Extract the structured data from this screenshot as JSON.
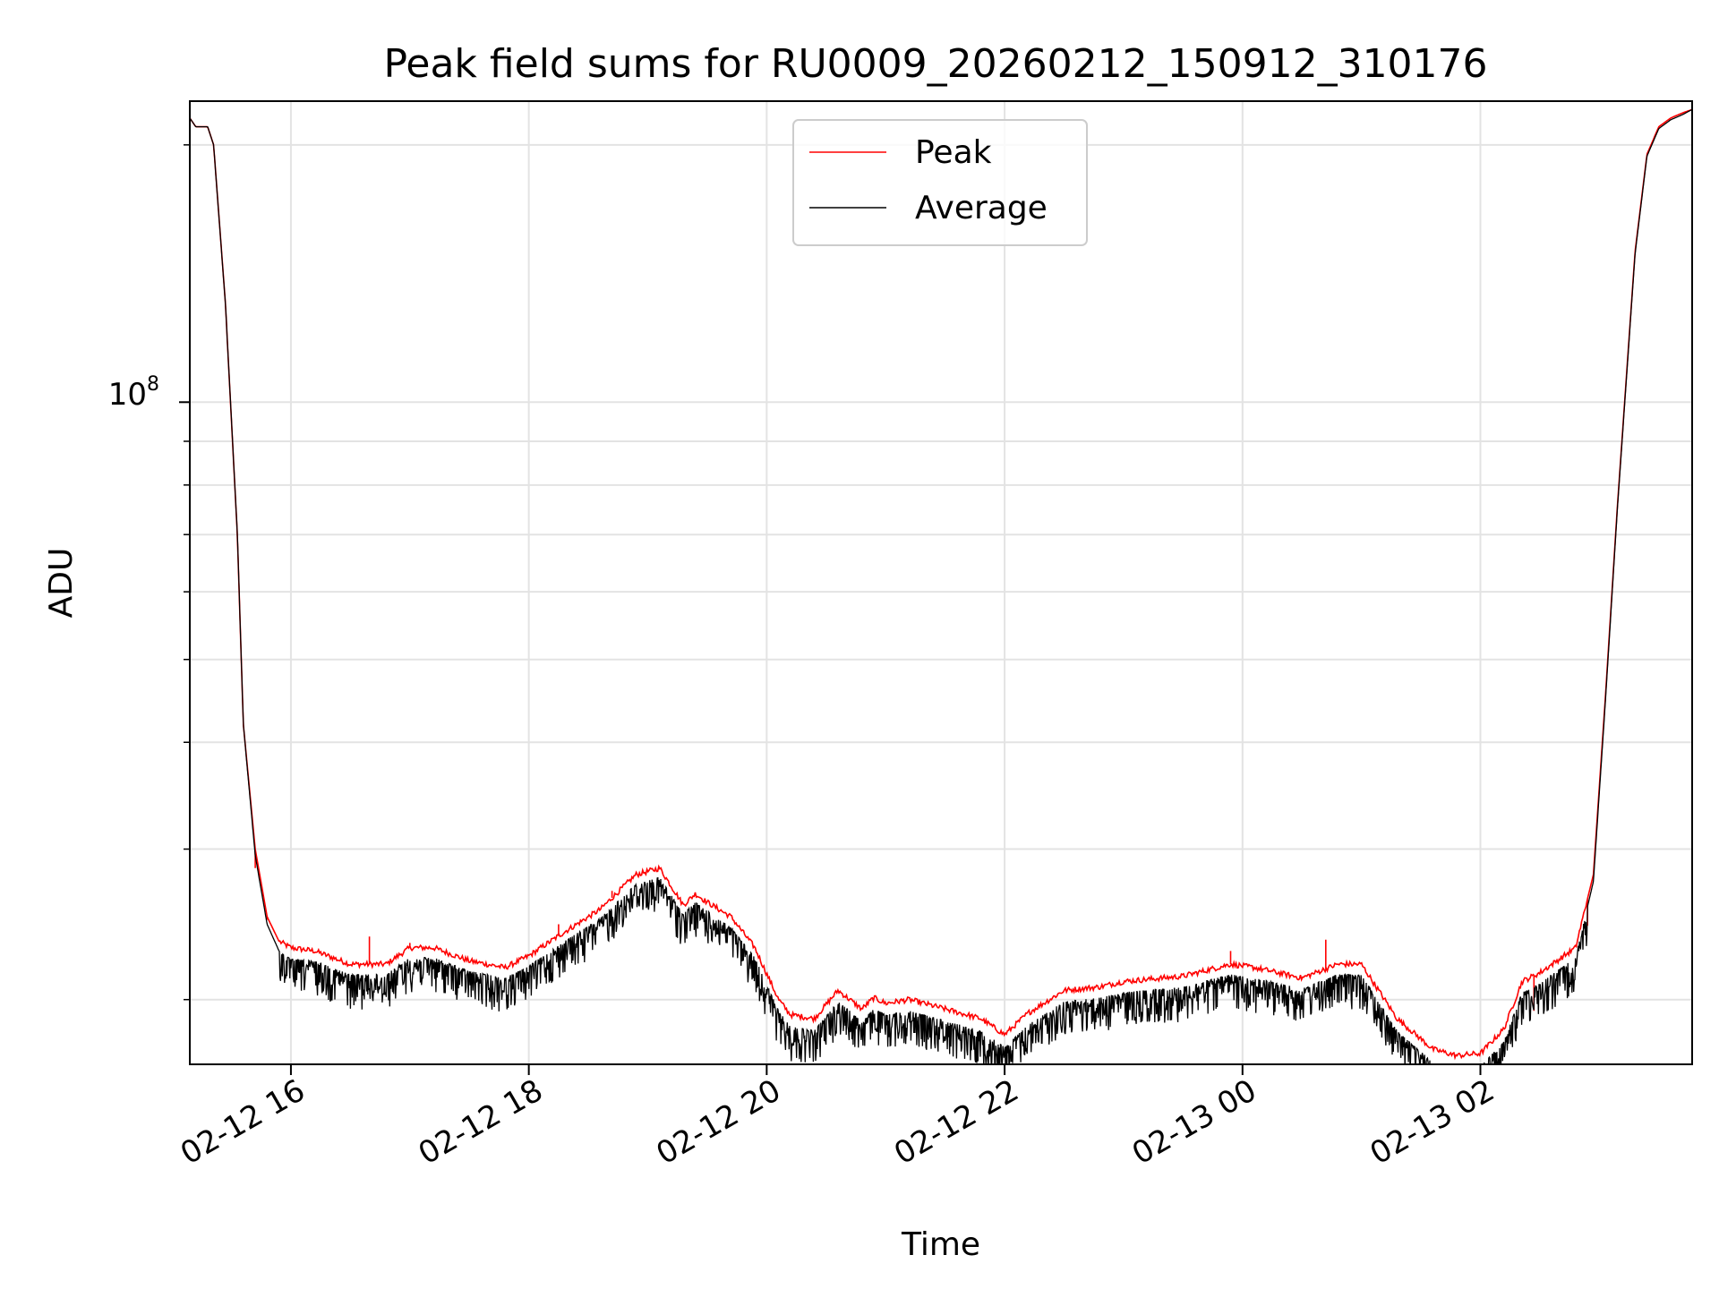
{
  "chart_data": {
    "type": "line",
    "title": "Peak field sums for RU0009_20260212_150912_310176",
    "xlabel": "Time",
    "ylabel": "ADU",
    "yscale": "log",
    "grid": true,
    "legend_position": "top-center",
    "x_unit": "hours since 02-12 00:00",
    "xlim": [
      15.15,
      27.78
    ],
    "ylim": [
      16800000,
      225000000
    ],
    "x_ticks": [
      {
        "value": 16,
        "label": "02-12 16"
      },
      {
        "value": 18,
        "label": "02-12 18"
      },
      {
        "value": 20,
        "label": "02-12 20"
      },
      {
        "value": 22,
        "label": "02-12 22"
      },
      {
        "value": 24,
        "label": "02-13 00"
      },
      {
        "value": 26,
        "label": "02-13 02"
      }
    ],
    "y_major_tick": {
      "value": 100000000,
      "base": "10",
      "exponent": "8"
    },
    "y_minor_ticks": [
      20000000,
      30000000,
      40000000,
      50000000,
      60000000,
      70000000,
      80000000,
      90000000,
      200000000
    ],
    "series": [
      {
        "name": "Peak",
        "color": "#ff0000",
        "x": [
          15.15,
          15.2,
          15.3,
          15.35,
          15.45,
          15.55,
          15.6,
          15.7,
          15.8,
          15.9,
          16.0,
          16.2,
          16.5,
          16.8,
          17.0,
          17.2,
          17.5,
          17.8,
          18.0,
          18.3,
          18.6,
          18.9,
          19.1,
          19.3,
          19.4,
          19.5,
          19.7,
          19.9,
          20.1,
          20.2,
          20.4,
          20.6,
          20.8,
          20.9,
          21.0,
          21.2,
          21.5,
          21.8,
          22.0,
          22.2,
          22.5,
          22.8,
          23.0,
          23.5,
          23.9,
          24.1,
          24.5,
          24.8,
          25.0,
          25.3,
          25.6,
          25.8,
          26.0,
          26.2,
          26.35,
          26.5,
          26.8,
          26.95,
          27.05,
          27.15,
          27.3,
          27.4,
          27.5,
          27.6,
          27.7,
          27.78
        ],
        "y": [
          215000000,
          210000000,
          210000000,
          200000000,
          130000000,
          70000000,
          42000000,
          30000000,
          25000000,
          23400000,
          23000000,
          22800000,
          22000000,
          22000000,
          23000000,
          23000000,
          22200000,
          21800000,
          22500000,
          24000000,
          25500000,
          28000000,
          28500000,
          25800000,
          26600000,
          26000000,
          25000000,
          23000000,
          20000000,
          19200000,
          19000000,
          20500000,
          19500000,
          20100000,
          19800000,
          20000000,
          19500000,
          19000000,
          18200000,
          19300000,
          20500000,
          20700000,
          21000000,
          21300000,
          22000000,
          21800000,
          21200000,
          22000000,
          22000000,
          19000000,
          17500000,
          17200000,
          17300000,
          18500000,
          21000000,
          21500000,
          23000000,
          28000000,
          45000000,
          75000000,
          150000000,
          195000000,
          210000000,
          215000000,
          218000000,
          220000000
        ],
        "spikes": [
          {
            "x": 15.7,
            "y": 28500000
          },
          {
            "x": 15.8,
            "y": 24800000
          },
          {
            "x": 16.66,
            "y": 23700000
          },
          {
            "x": 17.0,
            "y": 23300000
          },
          {
            "x": 18.25,
            "y": 24500000
          },
          {
            "x": 18.7,
            "y": 26800000
          },
          {
            "x": 23.9,
            "y": 22800000
          },
          {
            "x": 24.7,
            "y": 23500000
          },
          {
            "x": 26.45,
            "y": 19400000
          },
          {
            "x": 26.65,
            "y": 22200000
          },
          {
            "x": 26.9,
            "y": 24400000
          }
        ]
      },
      {
        "name": "Average",
        "color": "#000000",
        "noise_fraction": 0.09,
        "x": [
          15.15,
          15.2,
          15.3,
          15.35,
          15.45,
          15.55,
          15.6,
          15.7,
          15.8,
          15.9,
          16.0,
          16.2,
          16.5,
          16.8,
          17.0,
          17.2,
          17.5,
          17.8,
          18.0,
          18.3,
          18.6,
          18.9,
          19.1,
          19.3,
          19.4,
          19.5,
          19.7,
          19.9,
          20.1,
          20.2,
          20.4,
          20.6,
          20.8,
          20.9,
          21.0,
          21.2,
          21.5,
          21.8,
          22.0,
          22.2,
          22.5,
          22.8,
          23.0,
          23.5,
          23.9,
          24.1,
          24.5,
          24.8,
          25.0,
          25.3,
          25.6,
          25.8,
          26.0,
          26.2,
          26.35,
          26.5,
          26.8,
          26.95,
          27.05,
          27.15,
          27.3,
          27.4,
          27.5,
          27.6,
          27.7,
          27.78
        ],
        "y": [
          215000000,
          210000000,
          210000000,
          200000000,
          130000000,
          70000000,
          42000000,
          29500000,
          24500000,
          22800000,
          22300000,
          22200000,
          21400000,
          21400000,
          22400000,
          22400000,
          21600000,
          21200000,
          21900000,
          23400000,
          24900000,
          27300000,
          27800000,
          25200000,
          26000000,
          25400000,
          24300000,
          22400000,
          19400000,
          18600000,
          18400000,
          19900000,
          18900000,
          19500000,
          19200000,
          19400000,
          18900000,
          18400000,
          17600000,
          18700000,
          19900000,
          20100000,
          20400000,
          20700000,
          21400000,
          21200000,
          20600000,
          21400000,
          21400000,
          18400000,
          16900000,
          16600000,
          16700000,
          17900000,
          20400000,
          20900000,
          22400000,
          27500000,
          44500000,
          74500000,
          149000000,
          194000000,
          209000000,
          214000000,
          217000000,
          220000000
        ]
      }
    ]
  }
}
